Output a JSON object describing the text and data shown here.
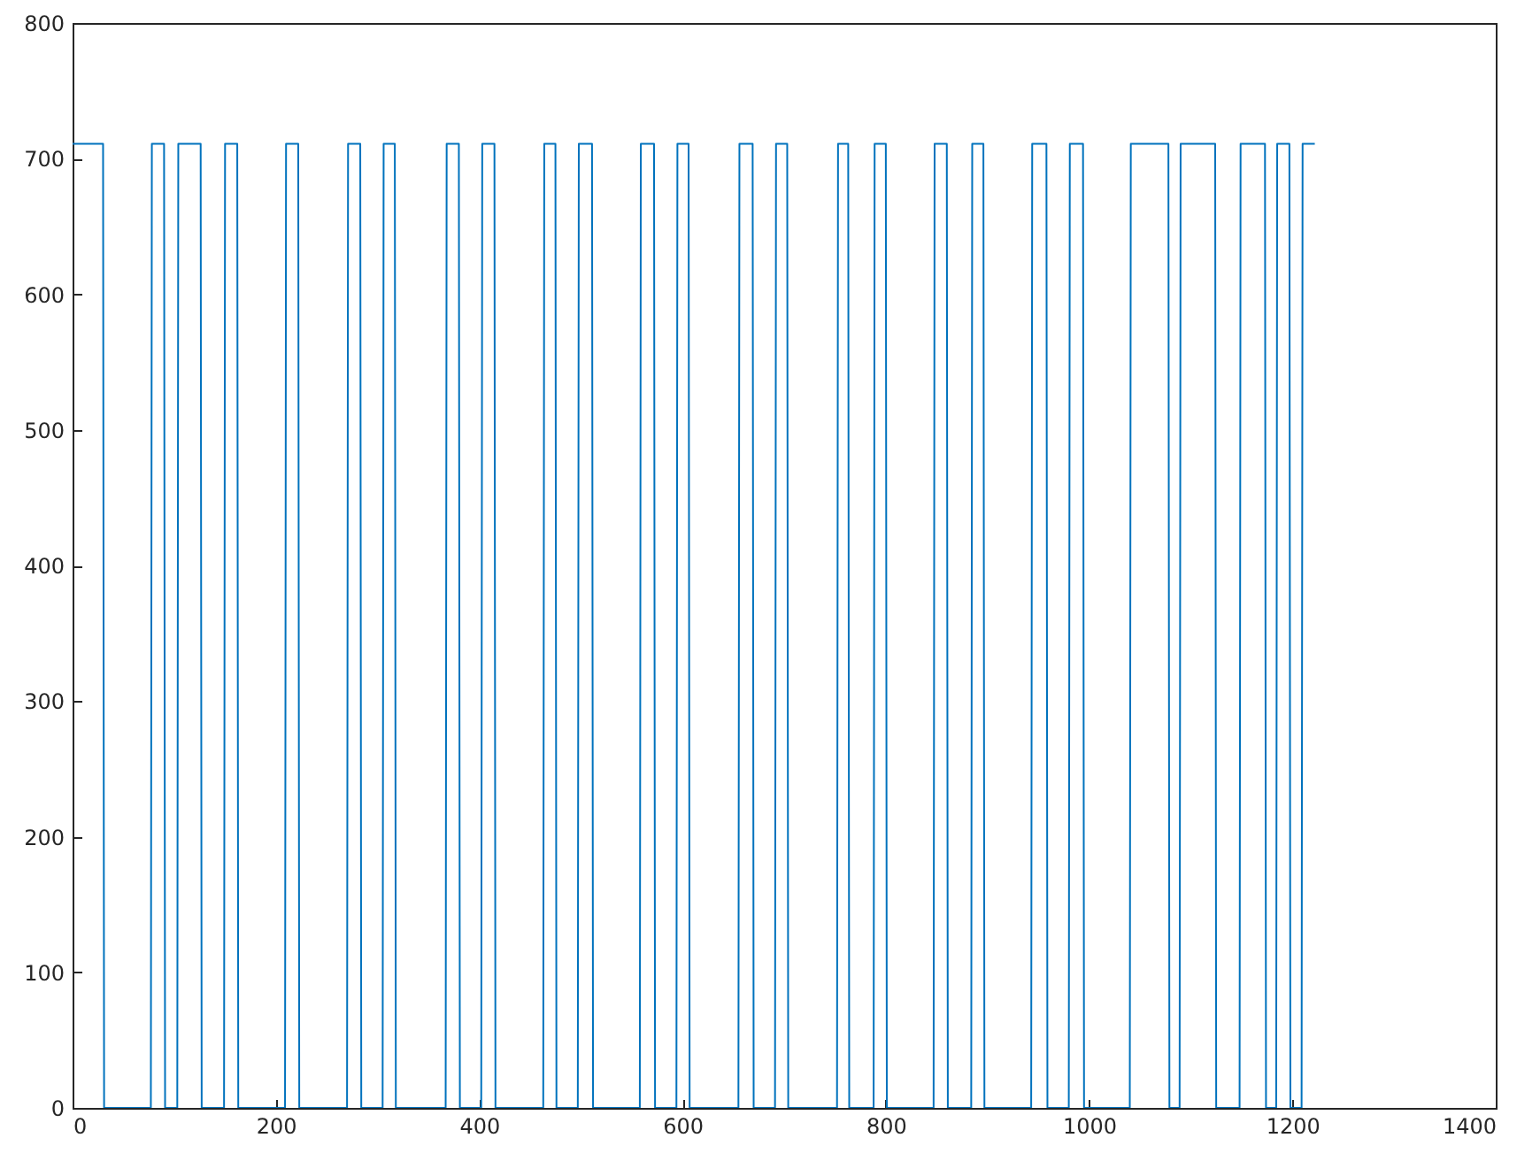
{
  "chart_data": {
    "type": "line",
    "xlim": [
      0,
      1400
    ],
    "ylim": [
      0,
      800
    ],
    "xticks": [
      0,
      200,
      400,
      600,
      800,
      1000,
      1200,
      1400
    ],
    "yticks": [
      0,
      100,
      200,
      300,
      400,
      500,
      600,
      700,
      800
    ],
    "grid": false,
    "marker": "none",
    "line_style": "solid",
    "x": [
      0,
      30,
      31,
      77,
      78,
      90,
      91,
      103,
      104,
      126,
      127,
      149,
      150,
      162,
      163,
      209,
      210,
      222,
      223,
      270,
      271,
      283,
      284,
      305,
      306,
      317,
      318,
      367,
      368,
      380,
      381,
      402,
      403,
      415,
      416,
      463,
      464,
      475,
      476,
      497,
      498,
      511,
      512,
      558,
      559,
      572,
      573,
      594,
      595,
      606,
      607,
      655,
      656,
      669,
      670,
      691,
      692,
      703,
      704,
      752,
      753,
      763,
      764,
      788,
      789,
      800,
      801,
      847,
      848,
      860,
      861,
      884,
      885,
      896,
      897,
      943,
      944,
      958,
      959,
      980,
      981,
      994,
      995,
      1040,
      1041,
      1078,
      1079,
      1089,
      1090,
      1124,
      1125,
      1148,
      1149,
      1173,
      1174,
      1184,
      1185,
      1197,
      1198,
      1209,
      1210,
      1222
    ],
    "series": [
      {
        "color": "#0072bd",
        "values": [
          711,
          711,
          0,
          0,
          711,
          711,
          0,
          0,
          711,
          711,
          0,
          0,
          711,
          711,
          0,
          0,
          711,
          711,
          0,
          0,
          711,
          711,
          0,
          0,
          711,
          711,
          0,
          0,
          711,
          711,
          0,
          0,
          711,
          711,
          0,
          0,
          711,
          711,
          0,
          0,
          711,
          711,
          0,
          0,
          711,
          711,
          0,
          0,
          711,
          711,
          0,
          0,
          711,
          711,
          0,
          0,
          711,
          711,
          0,
          0,
          711,
          711,
          0,
          0,
          711,
          711,
          0,
          0,
          711,
          711,
          0,
          0,
          711,
          711,
          0,
          0,
          711,
          711,
          0,
          0,
          711,
          711,
          0,
          0,
          711,
          711,
          0,
          0,
          711,
          711,
          0,
          0,
          711,
          711,
          0,
          0,
          711,
          711,
          0,
          0,
          711,
          711
        ]
      }
    ]
  }
}
